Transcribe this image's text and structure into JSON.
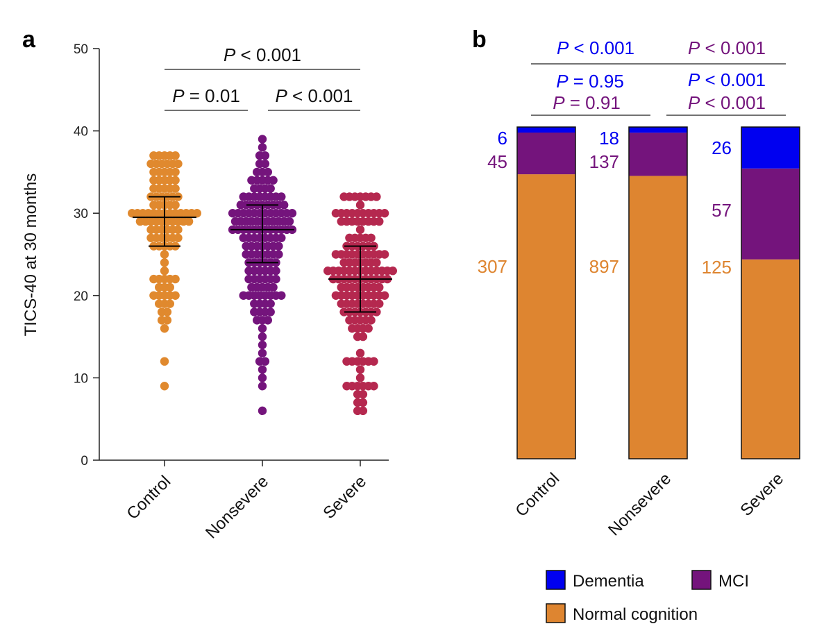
{
  "colors": {
    "control": "#E0892E",
    "nonsevere": "#74147C",
    "severe": "#B5284F",
    "dementia": "#0000F0",
    "mci": "#74147C",
    "normal": "#DE8530"
  },
  "chart_data": [
    {
      "panel": "a",
      "type": "scatter",
      "subtype": "beeswarm",
      "ylabel": "TICS-40 at 30 months",
      "ylim": [
        0,
        50
      ],
      "yticks": [
        "0",
        "10",
        "20",
        "30",
        "40",
        "50"
      ],
      "categories": [
        "Control",
        "Nonsevere",
        "Severe"
      ],
      "groups": [
        {
          "category": "Control",
          "color": "#E0892E",
          "median": 29.5,
          "iqr": [
            26,
            32
          ],
          "dots_per_score": {
            "37": 5,
            "36": 6,
            "35": 5,
            "34": 5,
            "33": 5,
            "32": 6,
            "31": 5,
            "30": 13,
            "29": 10,
            "28": 6,
            "27": 6,
            "26": 5,
            "25": 1,
            "24": 1,
            "23": 1,
            "22": 5,
            "21": 3,
            "20": 5,
            "19": 3,
            "18": 2,
            "17": 2,
            "16": 1,
            "12": 1,
            "9": 1
          }
        },
        {
          "category": "Nonsevere",
          "color": "#74147C",
          "median": 28,
          "iqr": [
            24,
            31
          ],
          "dots_per_score": {
            "39": 1,
            "38": 1,
            "37": 2,
            "36": 2,
            "35": 3,
            "34": 5,
            "33": 4,
            "32": 8,
            "31": 9,
            "30": 12,
            "29": 11,
            "28": 12,
            "27": 8,
            "26": 7,
            "25": 7,
            "24": 6,
            "23": 6,
            "22": 6,
            "21": 5,
            "20": 8,
            "19": 4,
            "18": 4,
            "17": 3,
            "16": 1,
            "15": 1,
            "14": 1,
            "13": 1,
            "12": 2,
            "11": 1,
            "10": 1,
            "9": 1,
            "6": 1
          }
        },
        {
          "category": "Severe",
          "color": "#B5284F",
          "median": 22,
          "iqr": [
            18,
            26
          ],
          "dots_per_score": {
            "32": 7,
            "31": 1,
            "30": 10,
            "29": 8,
            "28": 1,
            "27": 5,
            "26": 6,
            "25": 10,
            "24": 7,
            "23": 13,
            "22": 11,
            "21": 8,
            "20": 10,
            "19": 8,
            "18": 7,
            "17": 5,
            "16": 4,
            "15": 2,
            "13": 1,
            "12": 6,
            "11": 1,
            "10": 1,
            "9": 6,
            "8": 2,
            "7": 2,
            "6": 2
          }
        }
      ],
      "annotations": [
        {
          "text_p": "P",
          "text_rest": " < 0.001",
          "from": "Control",
          "to": "Severe",
          "level": 2
        },
        {
          "text_p": "P",
          "text_rest": " = 0.01",
          "from": "Control",
          "to": "Nonsevere",
          "level": 1
        },
        {
          "text_p": "P",
          "text_rest": " < 0.001",
          "from": "Nonsevere",
          "to": "Severe",
          "level": 1
        }
      ]
    },
    {
      "panel": "b",
      "type": "bar",
      "subtype": "stacked-100",
      "categories": [
        "Control",
        "Nonsevere",
        "Severe"
      ],
      "series": [
        {
          "name": "Normal cognition",
          "color": "#DE8530",
          "values": [
            307,
            897,
            125
          ]
        },
        {
          "name": "MCI",
          "color": "#74147C",
          "values": [
            45,
            137,
            57
          ]
        },
        {
          "name": "Dementia",
          "color": "#0000F0",
          "values": [
            6,
            18,
            26
          ]
        }
      ],
      "legend": {
        "position": "bottom-right",
        "entries": [
          "Dementia",
          "MCI",
          "Normal cognition"
        ]
      },
      "annotations": [
        {
          "group": "top",
          "dementia": {
            "p": "P",
            "rest": " < 0.001"
          },
          "mci": {
            "p": "P",
            "rest": " < 0.001"
          }
        },
        {
          "group": "control-nonsevere",
          "dementia": {
            "p": "P",
            "rest": " = 0.95"
          },
          "mci": {
            "p": "P",
            "rest": " = 0.91"
          }
        },
        {
          "group": "nonsevere-severe",
          "dementia": {
            "p": "P",
            "rest": " < 0.001"
          },
          "mci": {
            "p": "P",
            "rest": " < 0.001"
          }
        }
      ]
    }
  ]
}
